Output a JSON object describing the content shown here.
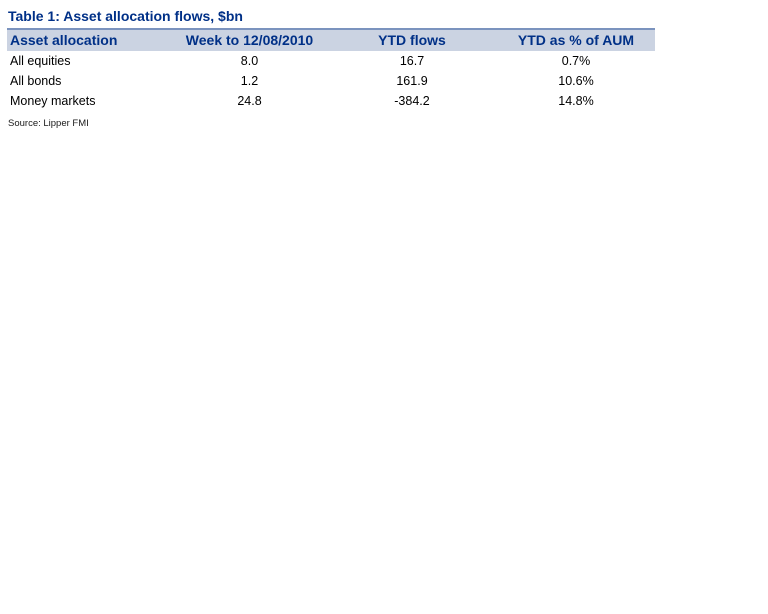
{
  "table": {
    "title": "Table 1: Asset allocation flows, $bn",
    "columns": [
      "Asset allocation",
      "Week to 12/08/2010",
      "YTD flows",
      "YTD as % of AUM"
    ],
    "rows": [
      {
        "label": "All equities",
        "week": "8.0",
        "ytd_flows": "16.7",
        "ytd_pct_aum": "0.7%"
      },
      {
        "label": "All bonds",
        "week": "1.2",
        "ytd_flows": "161.9",
        "ytd_pct_aum": "10.6%"
      },
      {
        "label": "Money markets",
        "week": "24.8",
        "ytd_flows": "-384.2",
        "ytd_pct_aum": "14.8%"
      }
    ],
    "source": "Source: Lipper FMI"
  },
  "colors": {
    "title_navy": "#003087",
    "header_bg": "#CBD3E2",
    "header_rule": "#7B93BE",
    "body_text": "#000000"
  }
}
